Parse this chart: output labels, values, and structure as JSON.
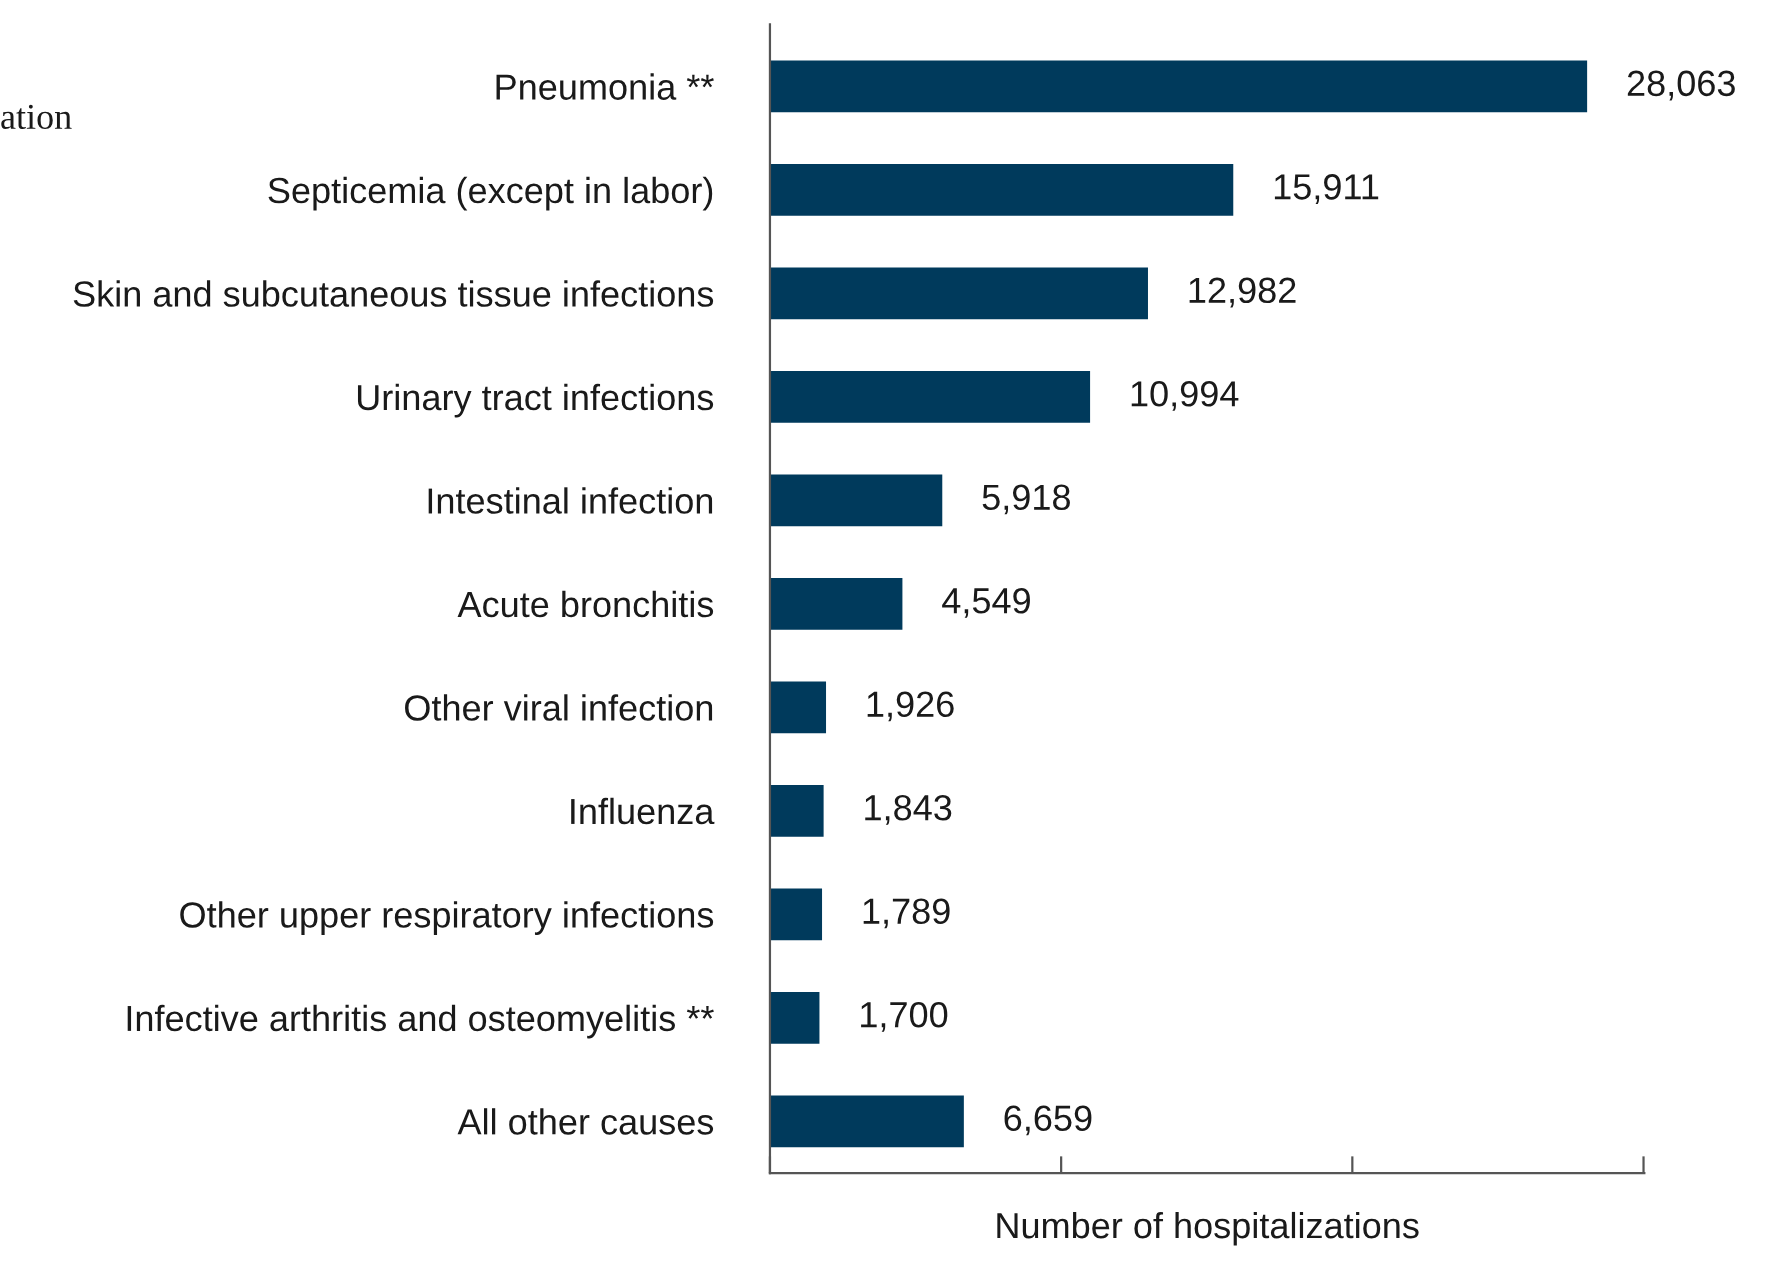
{
  "chart_data": {
    "type": "bar",
    "orientation": "horizontal",
    "categories": [
      "Pneumonia **",
      "Septicemia (except in labor)",
      "Skin and subcutaneous tissue infections",
      "Urinary tract infections",
      "Intestinal infection",
      "Acute bronchitis",
      "Other viral infection",
      "Influenza",
      "Other upper respiratory infections",
      "Infective arthritis and osteomyelitis **",
      "All other causes"
    ],
    "values": [
      28063,
      15911,
      12982,
      10994,
      5918,
      4549,
      1926,
      1843,
      1789,
      1700,
      6659
    ],
    "color": "#003a5c",
    "value_labels": [
      "28,063",
      "15,911",
      "12,982",
      "10,994",
      "5,918",
      "4,549",
      "1,926",
      "1,843",
      "1,789",
      "1,700",
      "6,659"
    ],
    "xlabel": "Number of hospitalizations",
    "tick_labels": "y",
    "grid": false,
    "legend": false,
    "annotations": [
      "ation"
    ]
  }
}
